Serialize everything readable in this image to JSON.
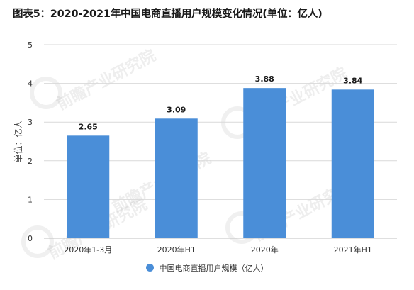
{
  "title": "图表5：2020-2021年中国电商直播用户规模变化情况(单位：亿人)",
  "watermark": "前瞻产业研究院",
  "colors": {
    "bar": "#4a8ed8",
    "grid": "#d9d9d9",
    "axis": "#bfbfbf"
  },
  "chart_data": {
    "type": "bar",
    "title": "图表5：2020-2021年中国电商直播用户规模变化情况(单位：亿人)",
    "xlabel": "",
    "ylabel": "单位：亿人",
    "categories": [
      "2020年1-3月",
      "2020年H1",
      "2020年",
      "2021年H1"
    ],
    "series": [
      {
        "name": "中国电商直播用户规模（亿人）",
        "values": [
          2.65,
          3.09,
          3.88,
          3.84
        ],
        "data_labels": [
          "2.65",
          "3.09",
          "3.88",
          "3.84"
        ]
      }
    ],
    "ylim": [
      0,
      5
    ],
    "yticks": [
      0,
      1,
      2,
      3,
      4,
      5
    ],
    "grid": true,
    "legend_position": "bottom"
  }
}
